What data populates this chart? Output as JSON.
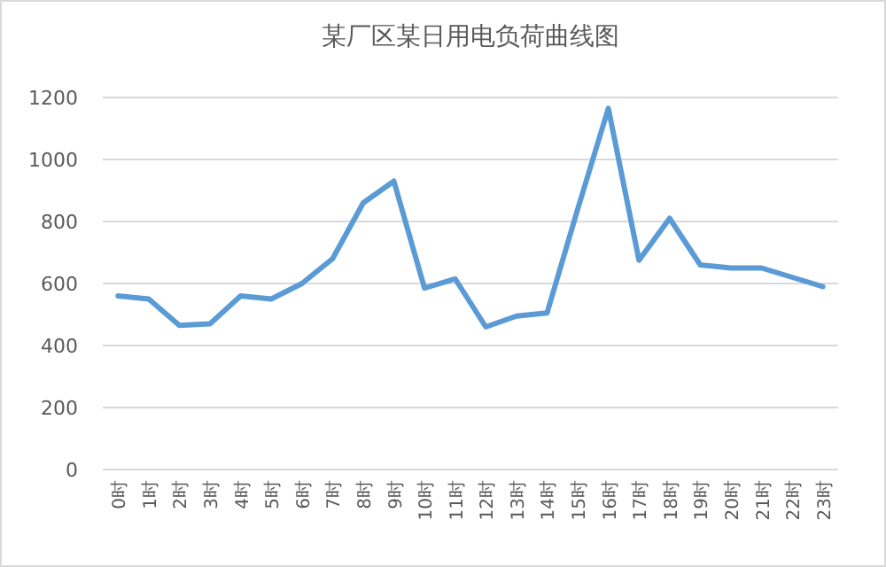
{
  "chart_data": {
    "type": "line",
    "title": "某厂区某日用电负荷曲线图",
    "categories": [
      "0时",
      "1时",
      "2时",
      "3时",
      "4时",
      "5时",
      "6时",
      "7时",
      "8时",
      "9时",
      "10时",
      "11时",
      "12时",
      "13时",
      "14时",
      "15时",
      "16时",
      "17时",
      "18时",
      "19时",
      "20时",
      "21时",
      "22时",
      "23时"
    ],
    "series": [
      {
        "color": "#5b9bd5",
        "values": [
          560,
          550,
          465,
          470,
          560,
          550,
          600,
          680,
          860,
          930,
          585,
          615,
          460,
          495,
          505,
          840,
          1165,
          675,
          810,
          660,
          650,
          650,
          620,
          590
        ]
      }
    ],
    "ylim": [
      0,
      1200
    ],
    "yticks": [
      0,
      200,
      400,
      600,
      800,
      1000,
      1200
    ],
    "grid": "y",
    "marker": "none",
    "line_style": "solid"
  }
}
